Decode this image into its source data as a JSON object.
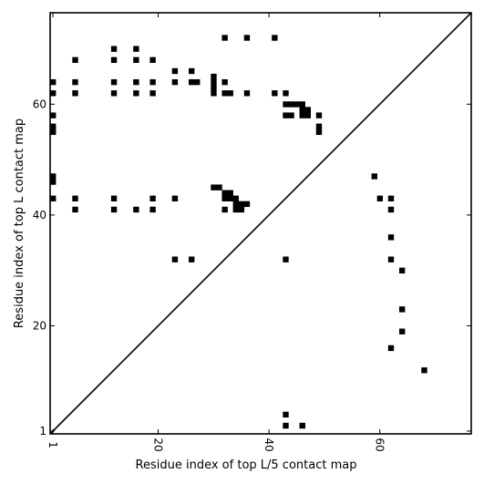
{
  "chart_data": {
    "type": "scatter",
    "title": "",
    "xlabel": "Residue index of top L/5 contact map",
    "ylabel": "Residue index of top L contact map",
    "xlim": [
      0.5,
      76.5
    ],
    "ylim": [
      0.5,
      76.5
    ],
    "xticks": [
      1,
      20,
      40,
      60
    ],
    "yticks": [
      1,
      20,
      40,
      60
    ],
    "diagonal": true,
    "grid": false,
    "series": [
      {
        "marker": "square",
        "color": "#000000",
        "points": [
          [
            1,
            64
          ],
          [
            1,
            62
          ],
          [
            1,
            58
          ],
          [
            1,
            56
          ],
          [
            1,
            55
          ],
          [
            1,
            47
          ],
          [
            1,
            46
          ],
          [
            1,
            43
          ],
          [
            5,
            68
          ],
          [
            5,
            64
          ],
          [
            5,
            62
          ],
          [
            5,
            43
          ],
          [
            5,
            41
          ],
          [
            12,
            70
          ],
          [
            12,
            68
          ],
          [
            12,
            64
          ],
          [
            12,
            62
          ],
          [
            12,
            43
          ],
          [
            12,
            41
          ],
          [
            16,
            70
          ],
          [
            16,
            68
          ],
          [
            16,
            64
          ],
          [
            16,
            62
          ],
          [
            16,
            41
          ],
          [
            19,
            68
          ],
          [
            19,
            64
          ],
          [
            19,
            62
          ],
          [
            19,
            43
          ],
          [
            19,
            41
          ],
          [
            23,
            66
          ],
          [
            23,
            64
          ],
          [
            23,
            43
          ],
          [
            23,
            32
          ],
          [
            26,
            66
          ],
          [
            26,
            64
          ],
          [
            26,
            32
          ],
          [
            27,
            64
          ],
          [
            30,
            65
          ],
          [
            30,
            64
          ],
          [
            30,
            63
          ],
          [
            30,
            62
          ],
          [
            30,
            45
          ],
          [
            31,
            45
          ],
          [
            32,
            72
          ],
          [
            32,
            64
          ],
          [
            32,
            62
          ],
          [
            32,
            44
          ],
          [
            32,
            43
          ],
          [
            32,
            41
          ],
          [
            33,
            62
          ],
          [
            33,
            44
          ],
          [
            33,
            43
          ],
          [
            34,
            43
          ],
          [
            34,
            42
          ],
          [
            34,
            41
          ],
          [
            35,
            42
          ],
          [
            35,
            41
          ],
          [
            36,
            72
          ],
          [
            36,
            62
          ],
          [
            36,
            42
          ],
          [
            41,
            72
          ],
          [
            41,
            62
          ],
          [
            43,
            62
          ],
          [
            43,
            60
          ],
          [
            43,
            58
          ],
          [
            43,
            32
          ],
          [
            43,
            4
          ],
          [
            43,
            2
          ],
          [
            44,
            60
          ],
          [
            44,
            58
          ],
          [
            45,
            60
          ],
          [
            46,
            60
          ],
          [
            46,
            59
          ],
          [
            46,
            58
          ],
          [
            46,
            2
          ],
          [
            47,
            59
          ],
          [
            47,
            58
          ],
          [
            49,
            58
          ],
          [
            49,
            56
          ],
          [
            49,
            55
          ],
          [
            59,
            47
          ],
          [
            60,
            43
          ],
          [
            62,
            43
          ],
          [
            62,
            41
          ],
          [
            62,
            36
          ],
          [
            62,
            32
          ],
          [
            62,
            16
          ],
          [
            64,
            30
          ],
          [
            64,
            23
          ],
          [
            64,
            19
          ],
          [
            68,
            12
          ]
        ]
      }
    ]
  }
}
